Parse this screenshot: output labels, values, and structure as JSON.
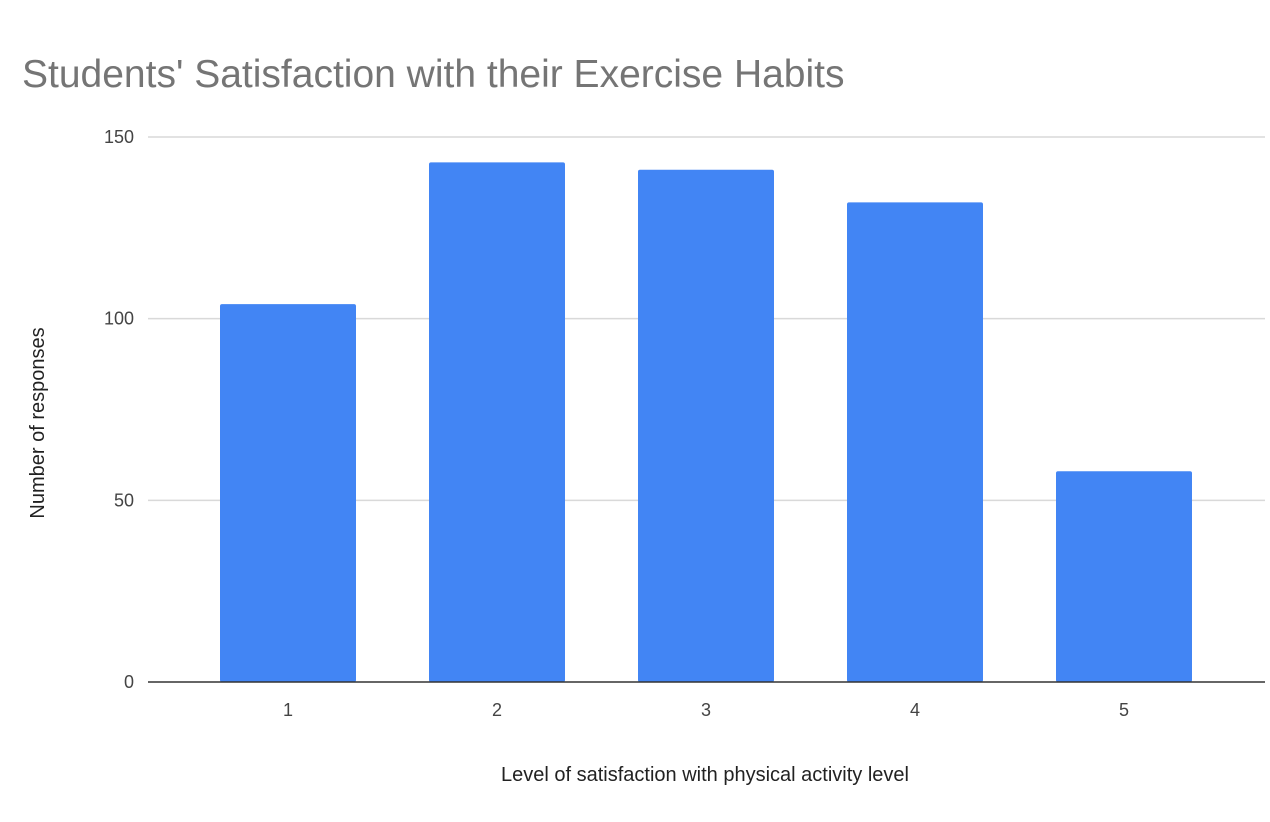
{
  "chart_data": {
    "type": "bar",
    "title": "Students' Satisfaction with their Exercise Habits",
    "xlabel": "Level of satisfaction with physical activity level",
    "ylabel": "Number of responses",
    "categories": [
      "1",
      "2",
      "3",
      "4",
      "5"
    ],
    "values": [
      104,
      143,
      141,
      132,
      58
    ],
    "ylim": [
      0,
      150
    ],
    "yticks": [
      "0",
      "50",
      "100",
      "150"
    ],
    "grid": true,
    "legend": "none",
    "bar_color": "#4285F4"
  }
}
